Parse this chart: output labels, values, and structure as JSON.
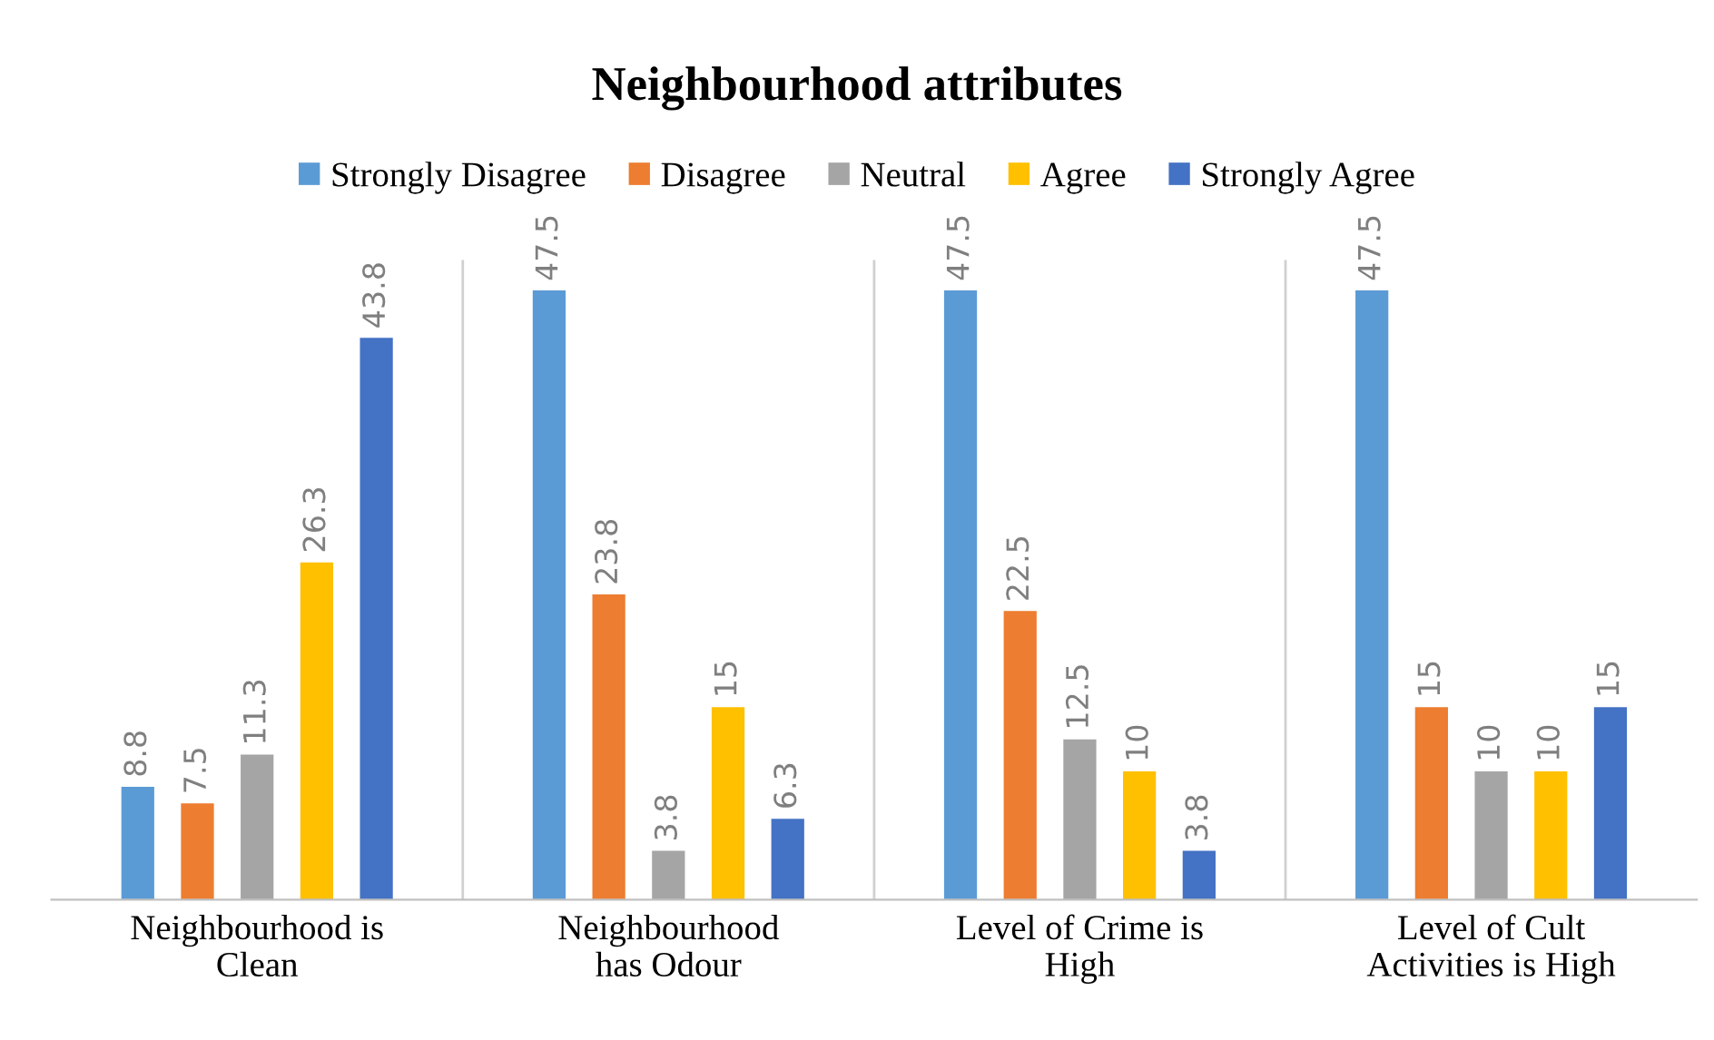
{
  "chart_data": {
    "type": "bar",
    "title": "Neighbourhood attributes",
    "categories": [
      "Neighbourhood is\nClean",
      "Neighbourhood\nhas Odour",
      "Level of Crime is\nHigh",
      "Level of Cult\nActivities is High"
    ],
    "series": [
      {
        "name": "Strongly Disagree",
        "color": "#5b9bd5",
        "values": [
          8.8,
          47.5,
          47.5,
          47.5
        ]
      },
      {
        "name": "Disagree",
        "color": "#ed7d31",
        "values": [
          7.5,
          23.8,
          22.5,
          15
        ]
      },
      {
        "name": "Neutral",
        "color": "#a5a5a5",
        "values": [
          11.3,
          3.8,
          12.5,
          10
        ]
      },
      {
        "name": "Agree",
        "color": "#ffc000",
        "values": [
          26.3,
          15,
          10,
          10
        ]
      },
      {
        "name": "Strongly Agree",
        "color": "#4472c4",
        "values": [
          43.8,
          6.3,
          3.8,
          15
        ]
      }
    ],
    "data_labels": true,
    "legend": "top",
    "grid": false,
    "tick_labels": "x"
  }
}
